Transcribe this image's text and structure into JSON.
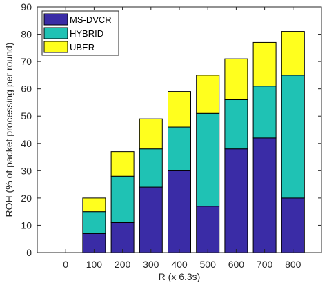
{
  "chart_data": {
    "type": "bar",
    "stacked": true,
    "categories": [
      "0",
      "100",
      "200",
      "300",
      "400",
      "500",
      "600",
      "700",
      "800"
    ],
    "series": [
      {
        "name": "MS-DVCR",
        "color": "#3a2ca6",
        "values": [
          0,
          7,
          11,
          24,
          30,
          17,
          38,
          42,
          20
        ]
      },
      {
        "name": "HYBRID",
        "color": "#1fc2b4",
        "values": [
          0,
          8,
          17,
          14,
          16,
          34,
          18,
          19,
          45
        ]
      },
      {
        "name": "UBER",
        "color": "#ffff1e",
        "values": [
          0,
          5,
          9,
          11,
          13,
          14,
          15,
          16,
          16
        ]
      }
    ],
    "xlabel": "R (x 6.3s)",
    "ylabel": "ROH (% of packet processing per round)",
    "ylim": [
      0,
      90
    ],
    "yticks": [
      0,
      10,
      20,
      30,
      40,
      50,
      60,
      70,
      80,
      90
    ],
    "legend_position": "top-left",
    "grid": false
  }
}
